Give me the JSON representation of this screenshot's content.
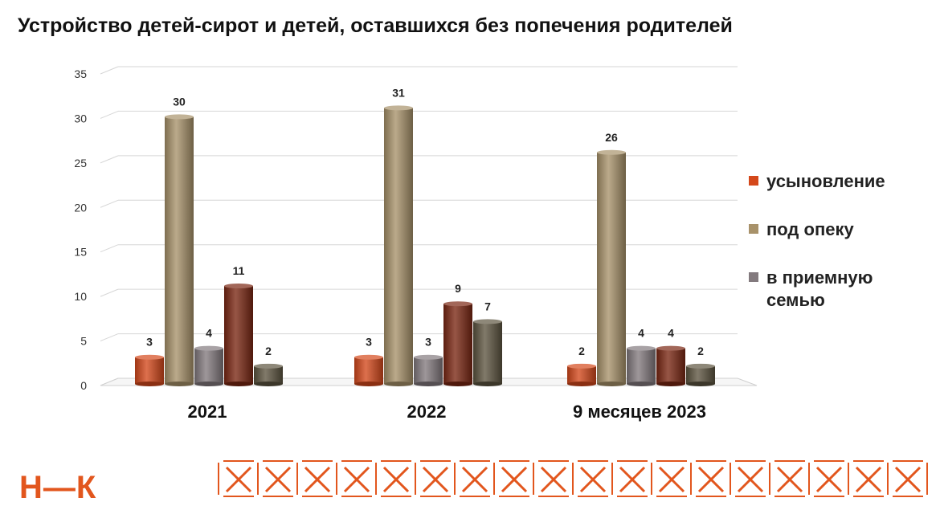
{
  "title": "Устройство детей-сирот и детей, оставшихся без попечения родителей",
  "chart_data": {
    "type": "bar",
    "categories": [
      "2021",
      "2022",
      "9 месяцев 2023"
    ],
    "ylim": [
      0,
      35
    ],
    "yticks": [
      "0",
      "5",
      "10",
      "15",
      "20",
      "25",
      "30",
      "35"
    ],
    "grid": true,
    "legend_position": "right",
    "series": [
      {
        "name": "усыновление",
        "color": "#d4481b",
        "values": [
          3,
          3,
          2
        ]
      },
      {
        "name": "под опеку",
        "color": "#a8926a",
        "values": [
          30,
          31,
          26
        ]
      },
      {
        "name": "в приемную семью",
        "color": "#837a7e",
        "values": [
          4,
          3,
          4
        ]
      },
      {
        "color": "#7a2612",
        "values": [
          11,
          9,
          4
        ]
      },
      {
        "color": "#5d5540",
        "values": [
          2,
          7,
          2
        ]
      }
    ]
  },
  "logo": {
    "text": "Н—К",
    "color": "#e2561d"
  }
}
